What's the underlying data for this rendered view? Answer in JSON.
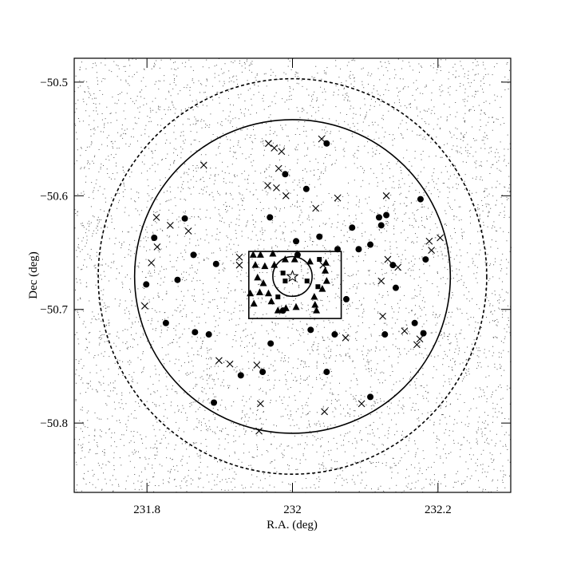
{
  "chart_data": {
    "type": "scatter",
    "xlabel": "R.A. (deg)",
    "ylabel": "Dec (deg)",
    "xlim": [
      231.7,
      232.3
    ],
    "ylim": [
      -50.861,
      -50.479
    ],
    "xticks": [
      231.8,
      232,
      232.2
    ],
    "yticks": [
      {
        "value": -50.5,
        "label": "−50.5"
      },
      {
        "value": -50.6,
        "label": "−50.6"
      },
      {
        "value": -50.7,
        "label": "−50.7"
      },
      {
        "value": -50.8,
        "label": "−50.8"
      }
    ],
    "regions": [
      {
        "shape": "ellipse",
        "style": "dotted",
        "x": 232.0,
        "y": -50.671,
        "rx": 0.267,
        "ry": 0.174
      },
      {
        "shape": "ellipse",
        "style": "solid",
        "x": 232.0,
        "y": -50.671,
        "rx": 0.217,
        "ry": 0.138
      },
      {
        "shape": "ellipse",
        "style": "solid",
        "x": 232.0,
        "y": -50.671,
        "rx": 0.027,
        "ry": 0.0175
      },
      {
        "shape": "rect",
        "style": "solid",
        "x": [
          231.94,
          232.067
        ],
        "y": [
          -50.649,
          -50.708
        ]
      }
    ],
    "series": [
      {
        "marker": "circle",
        "color": "#000",
        "x": [
          232.047,
          231.99,
          232.019,
          232.176,
          231.969,
          232.119,
          232.129,
          232.122,
          232.082,
          232.037,
          231.81,
          231.852,
          231.799,
          231.842,
          231.864,
          231.895,
          232.005,
          232.007,
          232.107,
          232.091,
          232.062,
          232.183,
          232.138,
          232.142,
          232.074,
          231.987,
          232.025,
          232.058,
          231.97,
          232.168,
          232.18,
          231.866,
          231.885,
          231.826,
          232.047,
          231.959,
          231.929,
          231.892,
          232.107,
          232.127
        ],
        "values": [
          -50.554,
          -50.581,
          -50.594,
          -50.603,
          -50.619,
          -50.619,
          -50.617,
          -50.626,
          -50.628,
          -50.636,
          -50.637,
          -50.62,
          -50.678,
          -50.674,
          -50.652,
          -50.66,
          -50.64,
          -50.652,
          -50.643,
          -50.647,
          -50.647,
          -50.656,
          -50.661,
          -50.681,
          -50.691,
          -50.701,
          -50.718,
          -50.722,
          -50.73,
          -50.712,
          -50.721,
          -50.72,
          -50.722,
          -50.712,
          -50.755,
          -50.755,
          -50.758,
          -50.782,
          -50.777,
          -50.722
        ]
      },
      {
        "marker": "cross",
        "color": "#000",
        "x": [
          231.967,
          231.975,
          231.985,
          232.04,
          231.878,
          231.981,
          231.966,
          231.978,
          231.991,
          232.062,
          232.129,
          231.813,
          231.832,
          231.814,
          231.857,
          231.806,
          231.797,
          231.927,
          231.927,
          232.073,
          232.122,
          232.131,
          232.145,
          232.188,
          232.191,
          232.203,
          232.124,
          232.154,
          232.175,
          232.171,
          231.899,
          231.914,
          231.951,
          231.956,
          231.954,
          232.044,
          232.095,
          232.032,
          232.042
        ],
        "values": [
          -50.554,
          -50.558,
          -50.561,
          -50.55,
          -50.573,
          -50.576,
          -50.591,
          -50.593,
          -50.6,
          -50.602,
          -50.6,
          -50.619,
          -50.626,
          -50.645,
          -50.631,
          -50.659,
          -50.697,
          -50.654,
          -50.661,
          -50.725,
          -50.675,
          -50.656,
          -50.663,
          -50.64,
          -50.648,
          -50.637,
          -50.706,
          -50.719,
          -50.726,
          -50.731,
          -50.745,
          -50.748,
          -50.749,
          -50.783,
          -50.807,
          -50.79,
          -50.783,
          -50.611,
          -50.661
        ]
      },
      {
        "marker": "triangle",
        "color": "#000",
        "x": [
          231.946,
          231.956,
          231.973,
          231.99,
          232.003,
          232.024,
          232.046,
          232.045,
          232.047,
          232.041,
          232.03,
          232.033,
          231.962,
          231.949,
          231.975,
          231.952,
          231.96,
          231.955,
          231.967,
          231.971,
          231.98,
          231.991,
          232.005,
          232.031,
          231.942,
          231.947
        ],
        "values": [
          -50.652,
          -50.652,
          -50.651,
          -50.656,
          -50.656,
          -50.658,
          -50.659,
          -50.666,
          -50.675,
          -50.682,
          -50.689,
          -50.701,
          -50.662,
          -50.661,
          -50.661,
          -50.672,
          -50.677,
          -50.685,
          -50.686,
          -50.693,
          -50.701,
          -50.699,
          -50.698,
          -50.696,
          -50.686,
          -50.695
        ]
      },
      {
        "marker": "square",
        "color": "#000",
        "x": [
          232.037,
          231.987,
          232.035,
          231.99,
          231.98,
          232.02
        ],
        "values": [
          -50.656,
          -50.668,
          -50.68,
          -50.675,
          -50.689,
          -50.675
        ]
      },
      {
        "marker": "star",
        "color": "#000",
        "x": [
          232.0
        ],
        "values": [
          -50.671
        ]
      }
    ]
  }
}
